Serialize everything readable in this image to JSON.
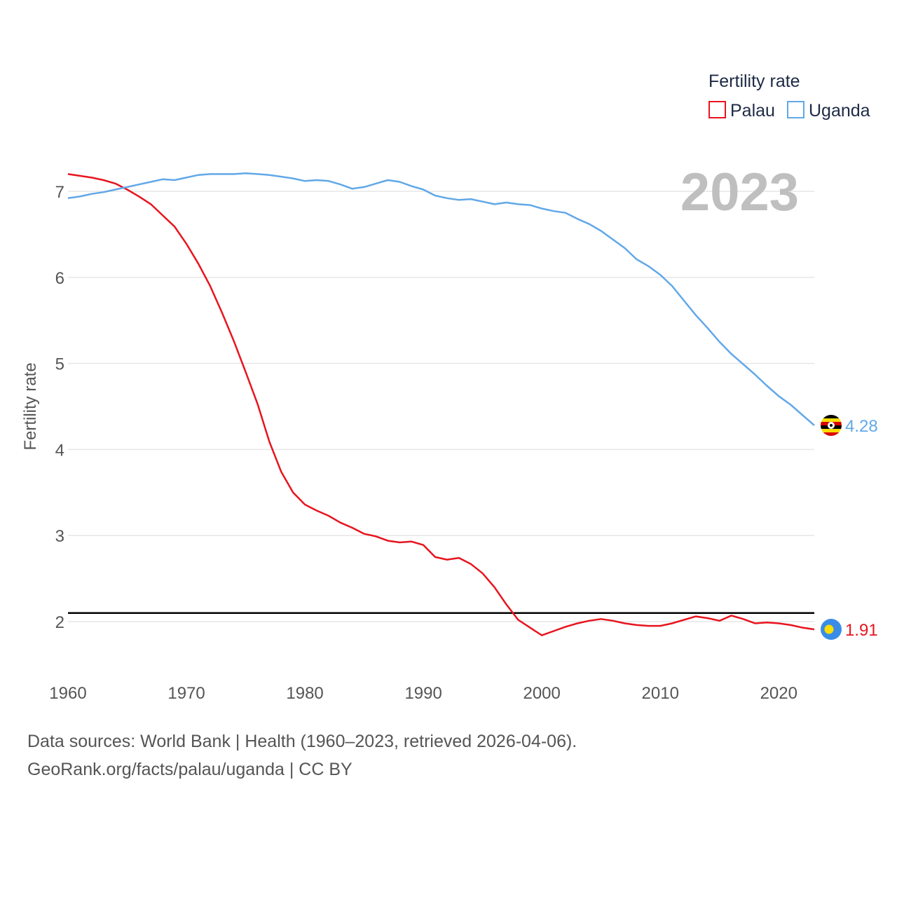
{
  "chart_data": {
    "type": "line",
    "title": "",
    "legend_title": "Fertility rate",
    "ylabel": "Fertility rate",
    "xlabel": "",
    "xlim": [
      1960,
      2023
    ],
    "ylim": [
      1.4,
      7.6
    ],
    "x_ticks": [
      1960,
      1970,
      1980,
      1990,
      2000,
      2010,
      2020
    ],
    "y_ticks": [
      2,
      3,
      4,
      5,
      6,
      7
    ],
    "grid": true,
    "legend_position": "top-right",
    "year_label": "2023",
    "reference_line": {
      "y": 2.1,
      "color": "#000000"
    },
    "x": [
      1960,
      1961,
      1962,
      1963,
      1964,
      1965,
      1966,
      1967,
      1968,
      1969,
      1970,
      1971,
      1972,
      1973,
      1974,
      1975,
      1976,
      1977,
      1978,
      1979,
      1980,
      1981,
      1982,
      1983,
      1984,
      1985,
      1986,
      1987,
      1988,
      1989,
      1990,
      1991,
      1992,
      1993,
      1994,
      1995,
      1996,
      1997,
      1998,
      1999,
      2000,
      2001,
      2002,
      2003,
      2004,
      2005,
      2006,
      2007,
      2008,
      2009,
      2010,
      2011,
      2012,
      2013,
      2014,
      2015,
      2016,
      2017,
      2018,
      2019,
      2020,
      2021,
      2022,
      2023
    ],
    "series": [
      {
        "name": "Palau",
        "color": "#e8141e",
        "end_label": "1.91",
        "values": [
          7.2,
          7.18,
          7.16,
          7.13,
          7.09,
          7.02,
          6.94,
          6.85,
          6.72,
          6.59,
          6.39,
          6.16,
          5.9,
          5.59,
          5.26,
          4.9,
          4.53,
          4.09,
          3.74,
          3.5,
          3.36,
          3.29,
          3.23,
          3.15,
          3.09,
          3.02,
          2.99,
          2.94,
          2.92,
          2.93,
          2.89,
          2.75,
          2.72,
          2.74,
          2.67,
          2.56,
          2.4,
          2.2,
          2.02,
          1.93,
          1.84,
          1.89,
          1.94,
          1.98,
          2.01,
          2.03,
          2.01,
          1.98,
          1.96,
          1.95,
          1.95,
          1.98,
          2.02,
          2.06,
          2.04,
          2.01,
          2.07,
          2.03,
          1.98,
          1.99,
          1.98,
          1.96,
          1.93,
          1.91
        ]
      },
      {
        "name": "Uganda",
        "color": "#61a8e8",
        "end_label": "4.28",
        "values": [
          6.92,
          6.94,
          6.97,
          6.99,
          7.02,
          7.05,
          7.08,
          7.11,
          7.14,
          7.13,
          7.16,
          7.19,
          7.2,
          7.2,
          7.2,
          7.21,
          7.2,
          7.19,
          7.17,
          7.15,
          7.12,
          7.13,
          7.12,
          7.08,
          7.03,
          7.05,
          7.09,
          7.13,
          7.11,
          7.06,
          7.02,
          6.95,
          6.92,
          6.9,
          6.91,
          6.88,
          6.85,
          6.87,
          6.85,
          6.84,
          6.8,
          6.77,
          6.75,
          6.68,
          6.62,
          6.54,
          6.44,
          6.34,
          6.21,
          6.13,
          6.03,
          5.9,
          5.73,
          5.56,
          5.41,
          5.25,
          5.11,
          4.99,
          4.87,
          4.74,
          4.62,
          4.52,
          4.4,
          4.28
        ]
      }
    ]
  },
  "footer": {
    "source": "Data sources: World Bank | Health (1960–2023, retrieved 2026-04-06).",
    "site": "GeoRank.org/facts/palau/uganda | CC BY"
  }
}
